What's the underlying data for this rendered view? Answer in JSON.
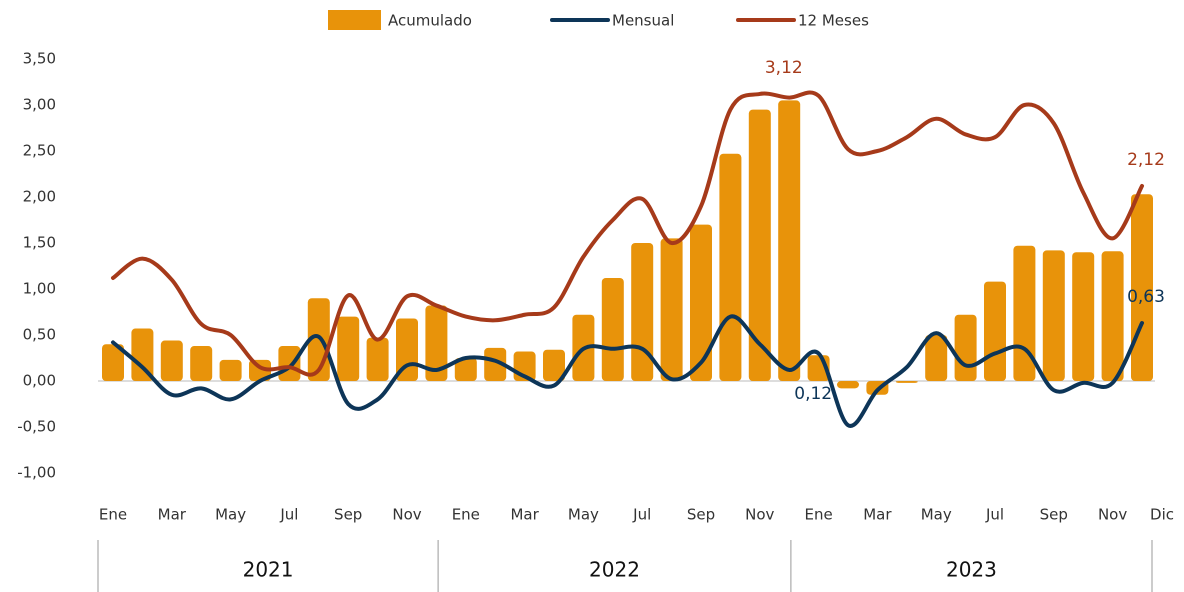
{
  "chart_data": {
    "type": "combo",
    "categories": [
      "Ene",
      null,
      "Mar",
      null,
      "May",
      null,
      "Jul",
      null,
      "Sep",
      null,
      "Nov",
      null,
      "Ene",
      null,
      "Mar",
      null,
      "May",
      null,
      "Jul",
      null,
      "Sep",
      null,
      "Nov",
      null,
      "Ene",
      null,
      "Mar",
      null,
      "May",
      null,
      "Jul",
      null,
      "Sep",
      null,
      "Nov",
      "Dic"
    ],
    "year_groups": [
      {
        "label": "2021",
        "start": 0,
        "end": 11
      },
      {
        "label": "2022",
        "start": 12,
        "end": 23
      },
      {
        "label": "2023",
        "start": 24,
        "end": 35
      }
    ],
    "series": [
      {
        "name": "Acumulado",
        "kind": "bar",
        "color": "#e8930a",
        "values": [
          0.4,
          0.57,
          0.44,
          0.38,
          0.23,
          0.23,
          0.38,
          0.9,
          0.7,
          0.47,
          0.68,
          0.82,
          0.25,
          0.36,
          0.32,
          0.34,
          0.72,
          1.12,
          1.5,
          1.55,
          1.7,
          2.47,
          2.95,
          3.05,
          0.28,
          -0.08,
          -0.15,
          -0.02,
          0.5,
          0.72,
          1.08,
          1.47,
          1.42,
          1.4,
          1.41,
          2.03
        ]
      },
      {
        "name": "Mensual",
        "kind": "line",
        "color": "#0d3558",
        "values": [
          0.42,
          0.15,
          -0.15,
          -0.08,
          -0.2,
          0.0,
          0.15,
          0.48,
          -0.25,
          -0.2,
          0.17,
          0.12,
          0.25,
          0.22,
          0.05,
          -0.05,
          0.35,
          0.35,
          0.35,
          0.02,
          0.2,
          0.7,
          0.4,
          0.12,
          0.3,
          -0.48,
          -0.1,
          0.15,
          0.52,
          0.17,
          0.3,
          0.35,
          -0.1,
          -0.02,
          -0.02,
          0.63
        ],
        "value_labels": [
          null,
          null,
          null,
          null,
          null,
          null,
          null,
          null,
          null,
          null,
          null,
          null,
          null,
          null,
          null,
          null,
          null,
          null,
          null,
          null,
          null,
          null,
          null,
          "0,12",
          null,
          null,
          null,
          null,
          null,
          null,
          null,
          null,
          null,
          null,
          null,
          "0,63"
        ]
      },
      {
        "name": "12 Meses",
        "kind": "line",
        "color": "#a63a1a",
        "values": [
          1.12,
          1.33,
          1.1,
          0.62,
          0.5,
          0.15,
          0.15,
          0.12,
          0.93,
          0.45,
          0.92,
          0.82,
          0.7,
          0.66,
          0.72,
          0.8,
          1.35,
          1.75,
          1.98,
          1.5,
          1.9,
          2.95,
          3.12,
          3.08,
          3.1,
          2.52,
          2.5,
          2.65,
          2.85,
          2.68,
          2.65,
          3.0,
          2.8,
          2.05,
          1.55,
          2.12
        ],
        "value_labels": [
          null,
          null,
          null,
          null,
          null,
          null,
          null,
          null,
          null,
          null,
          null,
          null,
          null,
          null,
          null,
          null,
          null,
          null,
          null,
          null,
          null,
          null,
          "3,12",
          null,
          null,
          null,
          null,
          null,
          null,
          null,
          null,
          null,
          null,
          null,
          null,
          "2,12"
        ]
      }
    ],
    "ylim": [
      -1,
      3.5
    ],
    "yticks": [
      {
        "value": -1,
        "label": "-1,00"
      },
      {
        "value": -0.5,
        "label": "-0,50"
      },
      {
        "value": 0,
        "label": "0,00"
      },
      {
        "value": 0.5,
        "label": "0,50"
      },
      {
        "value": 1,
        "label": "1,00"
      },
      {
        "value": 1.5,
        "label": "1,50"
      },
      {
        "value": 2,
        "label": "2,00"
      },
      {
        "value": 2.5,
        "label": "2,50"
      },
      {
        "value": 3,
        "label": "3,00"
      },
      {
        "value": 3.5,
        "label": "3,50"
      }
    ],
    "legend": "top",
    "grid": false
  }
}
